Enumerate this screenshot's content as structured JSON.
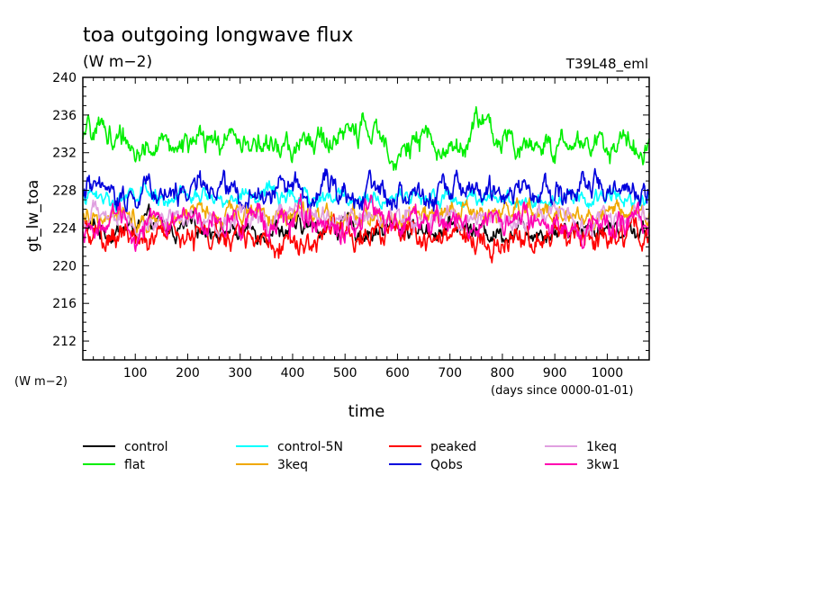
{
  "chart_data": {
    "type": "line",
    "title": "toa outgoing longwave flux",
    "subtitle": "(W m−2)",
    "run_label": "T39L48_eml",
    "ylabel": "gt_lw_toa",
    "yunits": "(W m−2)",
    "xlabel": "time",
    "xunits": "(days since 0000-01-01)",
    "xlim": [
      0,
      1080
    ],
    "ylim": [
      210,
      240
    ],
    "x_ticks": [
      100,
      200,
      300,
      400,
      500,
      600,
      700,
      800,
      900,
      1000
    ],
    "y_ticks": [
      212,
      216,
      220,
      224,
      228,
      232,
      236,
      240
    ],
    "grid": false,
    "legend_position": "bottom",
    "series": [
      {
        "name": "control",
        "color": "#000000",
        "mean": 223.8,
        "amp": 1.2,
        "points": [
          [
            0,
            224.1
          ],
          [
            60,
            223.6
          ],
          [
            120,
            224.4
          ],
          [
            180,
            223.7
          ],
          [
            240,
            224.2
          ],
          [
            300,
            223.5
          ],
          [
            360,
            224.0
          ],
          [
            420,
            223.9
          ],
          [
            480,
            224.3
          ],
          [
            540,
            223.6
          ],
          [
            600,
            224.1
          ],
          [
            660,
            223.8
          ],
          [
            720,
            224.2
          ],
          [
            780,
            223.5
          ],
          [
            840,
            224.0
          ],
          [
            900,
            223.7
          ],
          [
            960,
            224.3
          ],
          [
            1020,
            223.9
          ],
          [
            1080,
            224.0
          ]
        ]
      },
      {
        "name": "flat",
        "color": "#00ee00",
        "mean": 232.8,
        "amp": 1.6,
        "points": [
          [
            0,
            233.0
          ],
          [
            30,
            234.9
          ],
          [
            60,
            233.6
          ],
          [
            120,
            232.4
          ],
          [
            180,
            233.1
          ],
          [
            240,
            232.6
          ],
          [
            300,
            233.8
          ],
          [
            360,
            232.2
          ],
          [
            420,
            232.9
          ],
          [
            480,
            233.4
          ],
          [
            530,
            234.6
          ],
          [
            600,
            232.5
          ],
          [
            660,
            233.0
          ],
          [
            720,
            232.3
          ],
          [
            750,
            235.6
          ],
          [
            800,
            232.7
          ],
          [
            860,
            233.2
          ],
          [
            920,
            232.5
          ],
          [
            980,
            233.3
          ],
          [
            1040,
            232.8
          ],
          [
            1080,
            233.0
          ]
        ]
      },
      {
        "name": "control-5N",
        "color": "#00ffff",
        "mean": 227.2,
        "amp": 1.0,
        "points": [
          [
            0,
            227.5
          ],
          [
            60,
            227.0
          ],
          [
            120,
            227.6
          ],
          [
            180,
            226.9
          ],
          [
            240,
            227.4
          ],
          [
            300,
            227.1
          ],
          [
            360,
            227.7
          ],
          [
            420,
            226.8
          ],
          [
            480,
            227.3
          ],
          [
            540,
            227.0
          ],
          [
            600,
            227.5
          ],
          [
            660,
            227.2
          ],
          [
            720,
            226.9
          ],
          [
            780,
            227.6
          ],
          [
            840,
            227.1
          ],
          [
            900,
            227.4
          ],
          [
            960,
            226.9
          ],
          [
            1020,
            227.5
          ],
          [
            1080,
            227.2
          ]
        ]
      },
      {
        "name": "3keq",
        "color": "#f0a800",
        "mean": 225.5,
        "amp": 1.3,
        "points": [
          [
            0,
            225.2
          ],
          [
            60,
            225.9
          ],
          [
            120,
            225.1
          ],
          [
            180,
            225.7
          ],
          [
            240,
            225.3
          ],
          [
            300,
            226.0
          ],
          [
            360,
            225.4
          ],
          [
            420,
            225.8
          ],
          [
            480,
            225.0
          ],
          [
            540,
            225.6
          ],
          [
            600,
            225.3
          ],
          [
            660,
            225.9
          ],
          [
            720,
            225.2
          ],
          [
            780,
            225.7
          ],
          [
            840,
            225.4
          ],
          [
            900,
            225.8
          ],
          [
            960,
            225.1
          ],
          [
            1020,
            225.6
          ],
          [
            1080,
            225.5
          ]
        ]
      },
      {
        "name": "peaked",
        "color": "#ff0000",
        "mean": 223.0,
        "amp": 1.6,
        "points": [
          [
            0,
            223.3
          ],
          [
            60,
            222.6
          ],
          [
            120,
            223.4
          ],
          [
            180,
            222.8
          ],
          [
            240,
            223.2
          ],
          [
            300,
            222.5
          ],
          [
            360,
            223.1
          ],
          [
            420,
            222.9
          ],
          [
            480,
            223.4
          ],
          [
            540,
            222.7
          ],
          [
            600,
            223.0
          ],
          [
            660,
            222.6
          ],
          [
            720,
            223.3
          ],
          [
            780,
            222.4
          ],
          [
            840,
            223.1
          ],
          [
            900,
            222.8
          ],
          [
            960,
            223.2
          ],
          [
            1020,
            222.7
          ],
          [
            1080,
            223.0
          ]
        ]
      },
      {
        "name": "Qobs",
        "color": "#0000dd",
        "mean": 227.8,
        "amp": 1.6,
        "points": [
          [
            0,
            228.0
          ],
          [
            60,
            227.3
          ],
          [
            120,
            228.3
          ],
          [
            180,
            227.6
          ],
          [
            240,
            228.4
          ],
          [
            300,
            227.5
          ],
          [
            360,
            228.1
          ],
          [
            420,
            227.7
          ],
          [
            480,
            228.5
          ],
          [
            540,
            227.4
          ],
          [
            600,
            228.0
          ],
          [
            660,
            227.6
          ],
          [
            720,
            228.2
          ],
          [
            780,
            227.5
          ],
          [
            840,
            228.1
          ],
          [
            900,
            227.8
          ],
          [
            960,
            228.3
          ],
          [
            1020,
            227.6
          ],
          [
            1080,
            228.0
          ]
        ]
      },
      {
        "name": "1keq",
        "color": "#e0a0e0",
        "mean": 224.9,
        "amp": 1.3,
        "points": [
          [
            0,
            224.7
          ],
          [
            60,
            225.2
          ],
          [
            120,
            224.6
          ],
          [
            180,
            225.1
          ],
          [
            240,
            224.8
          ],
          [
            300,
            225.3
          ],
          [
            360,
            224.7
          ],
          [
            420,
            225.0
          ],
          [
            480,
            224.5
          ],
          [
            540,
            225.2
          ],
          [
            600,
            224.9
          ],
          [
            660,
            225.1
          ],
          [
            720,
            224.6
          ],
          [
            780,
            225.0
          ],
          [
            840,
            224.8
          ],
          [
            900,
            225.2
          ],
          [
            960,
            224.7
          ],
          [
            1020,
            225.0
          ],
          [
            1080,
            224.9
          ]
        ]
      },
      {
        "name": "3kw1",
        "color": "#ff00b0",
        "mean": 224.6,
        "amp": 1.6,
        "points": [
          [
            0,
            224.4
          ],
          [
            60,
            225.0
          ],
          [
            120,
            224.1
          ],
          [
            180,
            224.8
          ],
          [
            240,
            224.3
          ],
          [
            300,
            225.1
          ],
          [
            360,
            224.5
          ],
          [
            420,
            224.9
          ],
          [
            480,
            224.2
          ],
          [
            540,
            224.8
          ],
          [
            600,
            224.5
          ],
          [
            660,
            225.0
          ],
          [
            720,
            224.3
          ],
          [
            780,
            224.7
          ],
          [
            840,
            224.4
          ],
          [
            900,
            224.9
          ],
          [
            960,
            224.2
          ],
          [
            1020,
            224.7
          ],
          [
            1080,
            224.6
          ]
        ]
      }
    ]
  }
}
